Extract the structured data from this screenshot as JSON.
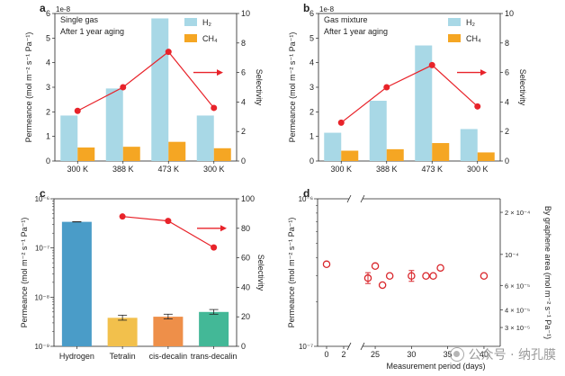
{
  "watermark": {
    "text": "公众号 · 纳孔膜",
    "icon": "wechat-logo-icon"
  },
  "colors": {
    "h2_bar": "#a8d8e6",
    "ch4_bar": "#f5a623",
    "selectivity": "#e8232a",
    "hydrogen": "#4a9cc8",
    "tetralin": "#f2c04c",
    "cis_decalin": "#ee8f49",
    "trans_decalin": "#43b897",
    "ring_marker": "#d9262b",
    "axis": "#222222"
  },
  "chart_data": [
    {
      "panel": "a",
      "type": "bar",
      "annotations": [
        "Single gas",
        "After 1 year aging"
      ],
      "exponent_label": "1e-8",
      "categories": [
        "300 K",
        "388 K",
        "473 K",
        "300 K"
      ],
      "series": [
        {
          "name": "H₂",
          "values": [
            1.85,
            2.95,
            5.8,
            1.85
          ]
        },
        {
          "name": "CH₄",
          "values": [
            0.55,
            0.58,
            0.78,
            0.52
          ]
        }
      ],
      "selectivity": [
        3.4,
        5.0,
        7.4,
        3.6
      ],
      "ylabel": "Permeance (mol m⁻² s⁻¹ Pa⁻¹)",
      "ylim": [
        0,
        6
      ],
      "yticks": [
        "0",
        "1",
        "2",
        "3",
        "4",
        "5",
        "6"
      ],
      "y2label": "Selectivity",
      "y2lim": [
        0,
        10
      ],
      "y2ticks": [
        "0",
        "2",
        "4",
        "6",
        "8",
        "10"
      ]
    },
    {
      "panel": "b",
      "type": "bar",
      "annotations": [
        "Gas mixture",
        "After 1 year aging"
      ],
      "exponent_label": "1e-8",
      "categories": [
        "300 K",
        "388 K",
        "473 K",
        "300 K"
      ],
      "series": [
        {
          "name": "H₂",
          "values": [
            1.15,
            2.45,
            4.7,
            1.3
          ]
        },
        {
          "name": "CH₄",
          "values": [
            0.42,
            0.48,
            0.73,
            0.35
          ]
        }
      ],
      "selectivity": [
        2.6,
        5.0,
        6.5,
        3.7
      ],
      "ylabel": "Permeance (mol m⁻² s⁻¹ Pa⁻¹)",
      "ylim": [
        0,
        6
      ],
      "yticks": [
        "0",
        "1",
        "2",
        "3",
        "4",
        "5",
        "6"
      ],
      "y2label": "Selectivity",
      "y2lim": [
        0,
        10
      ],
      "y2ticks": [
        "0",
        "2",
        "4",
        "6",
        "8",
        "10"
      ]
    },
    {
      "panel": "c",
      "type": "bar",
      "categories": [
        "Hydrogen",
        "Tetralin",
        "cis-decalin",
        "trans-decalin"
      ],
      "values": [
        3.4e-07,
        3.8e-09,
        4e-09,
        5e-09
      ],
      "error_low": [
        3.38e-07,
        3.4e-09,
        3.6e-09,
        4.5e-09
      ],
      "error_high": [
        3.42e-07,
        4.3e-09,
        4.5e-09,
        5.6e-09
      ],
      "selectivity_categories": [
        "Tetralin",
        "cis-decalin",
        "trans-decalin"
      ],
      "selectivity": [
        88,
        85,
        67
      ],
      "ylabel": "Permeance (mol m⁻² s⁻¹ Pa⁻¹)",
      "ylim": [
        1e-09,
        1e-06
      ],
      "yscale": "log",
      "yticks": [
        "10⁻⁹",
        "10⁻⁸",
        "10⁻⁷",
        "10⁻⁶"
      ],
      "y2label": "Selectivity",
      "y2lim": [
        0,
        100
      ],
      "y2ticks": [
        "0",
        "20",
        "40",
        "60",
        "80",
        "100"
      ]
    },
    {
      "panel": "d",
      "type": "scatter",
      "x": [
        0,
        24,
        25,
        26,
        27,
        30,
        32,
        33,
        34,
        40
      ],
      "y": [
        3.6e-07,
        2.9e-07,
        3.5e-07,
        2.6e-07,
        3e-07,
        3e-07,
        3e-07,
        3e-07,
        3.4e-07,
        3e-07
      ],
      "err_y": [
        0,
        1,
        0,
        0,
        0,
        1,
        0,
        0,
        0,
        0
      ],
      "xlabel": "Measurement period (days)",
      "xticks": [
        "0",
        "2",
        "25",
        "30",
        "35",
        "40"
      ],
      "axis_break": [
        2,
        24
      ],
      "ylabel": "Permeance (mol m⁻² s⁻¹ Pa⁻¹)",
      "ylim": [
        1e-07,
        1e-06
      ],
      "yscale": "log",
      "yticks": [
        "10⁻⁷",
        "10⁻⁶"
      ],
      "y2label": "By graphene area (mol m⁻² s⁻¹ Pa⁻¹)",
      "y2ticks": [
        "2 × 10⁻⁴",
        "10⁻⁴",
        "6 × 10⁻⁵",
        "4 × 10⁻⁵",
        "3 × 10⁻⁵"
      ],
      "y2tick_values": [
        0.0002,
        0.0001,
        6e-05,
        4e-05,
        3e-05
      ]
    }
  ]
}
